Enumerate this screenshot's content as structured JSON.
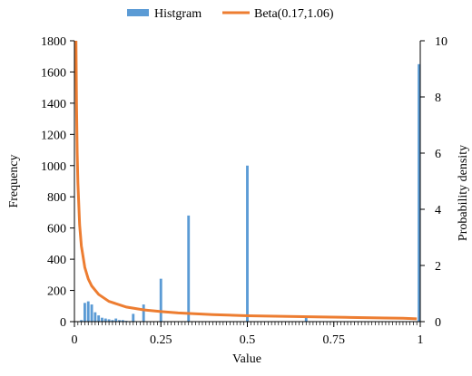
{
  "chart_data": {
    "type": "bar",
    "colors": {
      "histogram": "#5B9BD5",
      "beta": "#ED7D31",
      "axis": "#000000"
    },
    "legend": {
      "placement": "top",
      "entries": [
        {
          "name": "Histgram",
          "marker": "bar"
        },
        {
          "name": "Beta(0.17,1.06)",
          "marker": "line"
        }
      ]
    },
    "x_axis": {
      "label": "Value",
      "range": [
        0,
        1
      ],
      "ticks": [
        0,
        0.25,
        0.5,
        0.75,
        1
      ],
      "tick_labels": [
        "0",
        "0.25",
        "0.5",
        "0.75",
        "1"
      ]
    },
    "y_axis_left": {
      "label": "Frequency",
      "range": [
        0,
        1800
      ],
      "ticks": [
        0,
        200,
        400,
        600,
        800,
        1000,
        1200,
        1400,
        1600,
        1800
      ],
      "tick_labels": [
        "0",
        "200",
        "400",
        "600",
        "800",
        "1000",
        "1200",
        "1400",
        "1600",
        "1800"
      ]
    },
    "y_axis_right": {
      "label": "Probability density",
      "range": [
        0,
        10
      ],
      "ticks": [
        0,
        2,
        4,
        6,
        8,
        10
      ],
      "tick_labels": [
        "0",
        "2",
        "4",
        "6",
        "8",
        "10"
      ]
    },
    "grid": false,
    "series": [
      {
        "name": "Histgram",
        "type": "bar",
        "axis": "left",
        "bin_width": 0.01,
        "x": [
          0.01,
          0.02,
          0.03,
          0.04,
          0.05,
          0.06,
          0.07,
          0.08,
          0.09,
          0.1,
          0.11,
          0.12,
          0.13,
          0.14,
          0.15,
          0.17,
          0.2,
          0.25,
          0.33,
          0.5,
          0.67,
          1.0
        ],
        "values": [
          2,
          10,
          120,
          130,
          110,
          60,
          40,
          25,
          20,
          15,
          10,
          20,
          10,
          10,
          5,
          50,
          110,
          275,
          680,
          1000,
          25,
          1650
        ]
      },
      {
        "name": "Beta(0.17,1.06)",
        "type": "line",
        "axis": "right",
        "x": [
          0.0045,
          0.006,
          0.008,
          0.01,
          0.015,
          0.02,
          0.03,
          0.04,
          0.05,
          0.07,
          0.1,
          0.15,
          0.2,
          0.25,
          0.3,
          0.4,
          0.5,
          0.6,
          0.7,
          0.8,
          0.9,
          0.95,
          0.99
        ],
        "values": [
          10,
          7.8,
          6.0,
          4.95,
          3.45,
          2.7,
          1.93,
          1.52,
          1.27,
          0.97,
          0.72,
          0.52,
          0.42,
          0.36,
          0.31,
          0.25,
          0.21,
          0.19,
          0.17,
          0.15,
          0.13,
          0.12,
          0.1
        ]
      }
    ]
  }
}
